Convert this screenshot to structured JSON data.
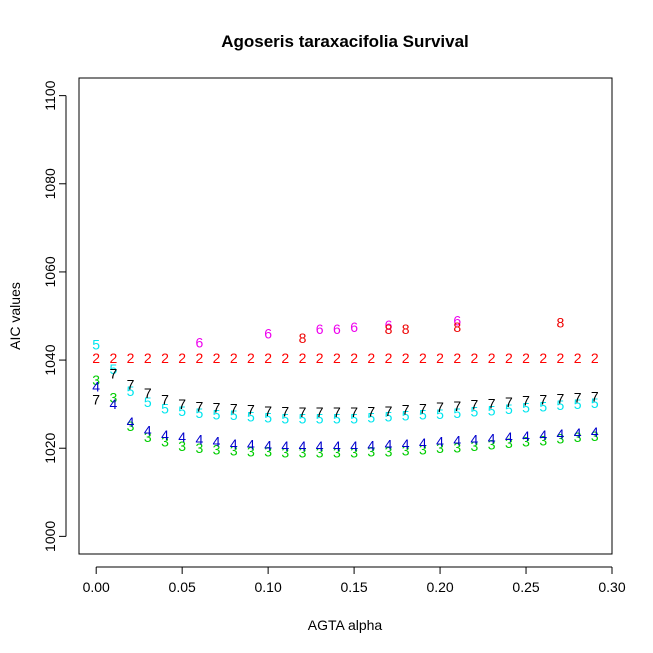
{
  "chart_data": {
    "type": "scatter",
    "title": "Agoseris taraxacifolia Survival",
    "xlabel": "AGTA alpha",
    "ylabel": "AIC values",
    "xlim": [
      -0.01,
      0.3
    ],
    "ylim": [
      996,
      1104
    ],
    "xticks": [
      "0.00",
      "0.05",
      "0.10",
      "0.15",
      "0.20",
      "0.25",
      "0.30"
    ],
    "xtick_values": [
      0,
      0.05,
      0.1,
      0.15,
      0.2,
      0.25,
      0.3
    ],
    "yticks": [
      "1000",
      "1020",
      "1040",
      "1060",
      "1080",
      "1100"
    ],
    "ytick_values": [
      1000,
      1020,
      1040,
      1060,
      1080,
      1100
    ],
    "grid": false,
    "legend": "none",
    "series": [
      {
        "symbol": "2",
        "color": "#ff0000",
        "x": [
          0,
          0.01,
          0.02,
          0.03,
          0.04,
          0.05,
          0.06,
          0.07,
          0.08,
          0.09,
          0.1,
          0.11,
          0.12,
          0.13,
          0.14,
          0.15,
          0.16,
          0.17,
          0.18,
          0.19,
          0.2,
          0.21,
          0.22,
          0.23,
          0.24,
          0.25,
          0.26,
          0.27,
          0.28,
          0.29
        ],
        "y": [
          1040.5,
          1040.5,
          1040.5,
          1040.5,
          1040.5,
          1040.5,
          1040.5,
          1040.5,
          1040.5,
          1040.5,
          1040.5,
          1040.5,
          1040.5,
          1040.5,
          1040.5,
          1040.5,
          1040.5,
          1040.5,
          1040.5,
          1040.5,
          1040.5,
          1040.5,
          1040.5,
          1040.5,
          1040.5,
          1040.5,
          1040.5,
          1040.5,
          1040.5,
          1040.5
        ]
      },
      {
        "symbol": "3",
        "color": "#00cd00",
        "x": [
          0,
          0.01,
          0.02,
          0.03,
          0.04,
          0.05,
          0.06,
          0.07,
          0.08,
          0.09,
          0.1,
          0.11,
          0.12,
          0.13,
          0.14,
          0.15,
          0.16,
          0.17,
          0.18,
          0.19,
          0.2,
          0.21,
          0.22,
          0.23,
          0.24,
          0.25,
          0.26,
          0.27,
          0.28,
          0.29
        ],
        "y": [
          1035.5,
          1031.5,
          1025,
          1022.5,
          1021.5,
          1020.5,
          1020,
          1019.7,
          1019.5,
          1019.3,
          1019.2,
          1019,
          1019,
          1019,
          1019,
          1019,
          1019.2,
          1019.3,
          1019.5,
          1019.7,
          1020,
          1020.2,
          1020.5,
          1020.8,
          1021.2,
          1021.5,
          1021.8,
          1022.2,
          1022.5,
          1022.8
        ]
      },
      {
        "symbol": "4",
        "color": "#0000cd",
        "x": [
          0,
          0.01,
          0.02,
          0.03,
          0.04,
          0.05,
          0.06,
          0.07,
          0.08,
          0.09,
          0.1,
          0.11,
          0.12,
          0.13,
          0.14,
          0.15,
          0.16,
          0.17,
          0.18,
          0.19,
          0.2,
          0.21,
          0.22,
          0.23,
          0.24,
          0.25,
          0.26,
          0.27,
          0.28,
          0.29
        ],
        "y": [
          1034,
          1030,
          1026,
          1024,
          1023,
          1022.5,
          1022,
          1021.5,
          1021,
          1020.8,
          1020.6,
          1020.5,
          1020.5,
          1020.5,
          1020.5,
          1020.5,
          1020.6,
          1020.8,
          1021,
          1021.2,
          1021.5,
          1021.8,
          1022,
          1022.2,
          1022.5,
          1022.8,
          1023,
          1023.2,
          1023.5,
          1023.7
        ]
      },
      {
        "symbol": "5",
        "color": "#00e5ee",
        "x": [
          0,
          0.01,
          0.02,
          0.03,
          0.04,
          0.05,
          0.06,
          0.07,
          0.08,
          0.09,
          0.1,
          0.11,
          0.12,
          0.13,
          0.14,
          0.15,
          0.16,
          0.17,
          0.18,
          0.19,
          0.2,
          0.21,
          0.22,
          0.23,
          0.24,
          0.25,
          0.26,
          0.27,
          0.28,
          0.29
        ],
        "y": [
          1043.5,
          1038,
          1033,
          1030.5,
          1029,
          1028.5,
          1028,
          1027.7,
          1027.5,
          1027.2,
          1027,
          1026.8,
          1026.8,
          1026.8,
          1026.8,
          1026.8,
          1027,
          1027.2,
          1027.4,
          1027.6,
          1027.8,
          1028,
          1028.3,
          1028.6,
          1028.9,
          1029.2,
          1029.5,
          1029.8,
          1030,
          1030.3
        ]
      },
      {
        "symbol": "6",
        "color": "#ee00ee",
        "x": [
          0.06,
          0.1,
          0.13,
          0.14,
          0.15,
          0.17,
          0.21
        ],
        "y": [
          1044,
          1046,
          1047,
          1047,
          1047.5,
          1048,
          1049
        ]
      },
      {
        "symbol": "7",
        "color": "#000000",
        "x": [
          0,
          0.01,
          0.02,
          0.03,
          0.04,
          0.05,
          0.06,
          0.07,
          0.08,
          0.09,
          0.1,
          0.11,
          0.12,
          0.13,
          0.14,
          0.15,
          0.16,
          0.17,
          0.18,
          0.19,
          0.2,
          0.21,
          0.22,
          0.23,
          0.24,
          0.25,
          0.26,
          0.27,
          0.28,
          0.29
        ],
        "y": [
          1031,
          1037,
          1034.5,
          1032.5,
          1031,
          1030,
          1029.5,
          1029.2,
          1029,
          1028.8,
          1028.5,
          1028.3,
          1028.2,
          1028.2,
          1028.2,
          1028.2,
          1028.3,
          1028.5,
          1028.8,
          1029,
          1029.3,
          1029.6,
          1029.9,
          1030.2,
          1030.5,
          1030.8,
          1031.1,
          1031.3,
          1031.5,
          1031.7
        ]
      },
      {
        "symbol": "8",
        "color": "#ee0000",
        "x": [
          0.12,
          0.17,
          0.18,
          0.21,
          0.27
        ],
        "y": [
          1045,
          1047,
          1047,
          1047.5,
          1048.5
        ]
      }
    ]
  }
}
